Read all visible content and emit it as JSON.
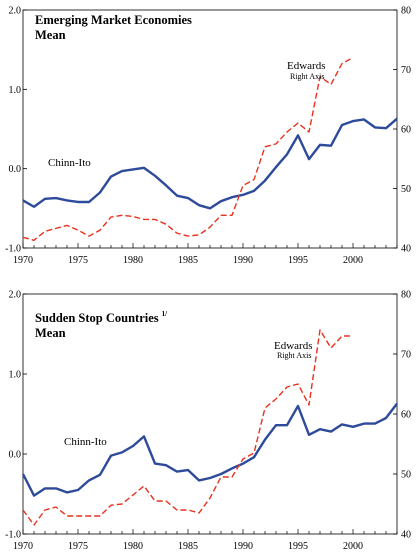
{
  "chart_data": [
    {
      "type": "line",
      "title": "Emerging Market Economies",
      "title_sup": "",
      "subtitle": "Mean",
      "x": [
        1970,
        1971,
        1972,
        1973,
        1974,
        1975,
        1976,
        1977,
        1978,
        1979,
        1980,
        1981,
        1982,
        1983,
        1984,
        1985,
        1986,
        1987,
        1988,
        1989,
        1990,
        1991,
        1992,
        1993,
        1994,
        1995,
        1996,
        1997,
        1998,
        1999,
        2000,
        2001,
        2002,
        2003,
        2004
      ],
      "xlim": [
        1970,
        2004
      ],
      "xticks": [
        "1970",
        "1975",
        "1980",
        "1985",
        "1990",
        "1995",
        "2000"
      ],
      "ylim_left": [
        -1.0,
        2.0
      ],
      "yticks_left": [
        "-1.0",
        "0.0",
        "1.0",
        "2.0"
      ],
      "ylim_right": [
        40,
        80
      ],
      "yticks_right": [
        "40",
        "50",
        "60",
        "70",
        "80"
      ],
      "grid": false,
      "series": [
        {
          "name": "Chinn-Ito",
          "axis": "left",
          "style": "solid",
          "color": "#2e4a9a",
          "values": [
            -0.4,
            -0.48,
            -0.38,
            -0.37,
            -0.4,
            -0.42,
            -0.42,
            -0.3,
            -0.1,
            -0.03,
            -0.01,
            0.01,
            -0.09,
            -0.21,
            -0.34,
            -0.37,
            -0.46,
            -0.5,
            -0.41,
            -0.36,
            -0.33,
            -0.28,
            -0.15,
            0.02,
            0.18,
            0.42,
            0.12,
            0.3,
            0.29,
            0.55,
            0.6,
            0.62,
            0.52,
            0.51,
            0.63
          ]
        },
        {
          "name": "Edwards",
          "sublabel": "Right Axis",
          "axis": "right",
          "style": "dashed",
          "color": "#e8321e",
          "x": [
            1970,
            1971,
            1972,
            1973,
            1974,
            1975,
            1976,
            1977,
            1978,
            1979,
            1980,
            1981,
            1982,
            1983,
            1984,
            1985,
            1986,
            1987,
            1988,
            1989,
            1990,
            1991,
            1992,
            1993,
            1994,
            1995,
            1996,
            1997,
            1998,
            1999,
            2000
          ],
          "values": [
            41.8,
            41.3,
            42.8,
            43.3,
            43.8,
            43.0,
            42.0,
            43.0,
            45.2,
            45.5,
            45.3,
            44.8,
            44.8,
            44.0,
            42.5,
            42.0,
            42.2,
            43.5,
            45.5,
            45.5,
            50.5,
            51.5,
            57.0,
            57.5,
            59.5,
            61.0,
            59.5,
            68.8,
            67.5,
            71.0,
            72.0
          ]
        }
      ],
      "annotations": [
        {
          "text": "Chinn-Ito"
        },
        {
          "text": "Edwards",
          "sub": "Right Axis"
        }
      ]
    },
    {
      "type": "line",
      "title": "Sudden Stop Countries",
      "title_sup": "1/",
      "subtitle": "Mean",
      "x": [
        1970,
        1971,
        1972,
        1973,
        1974,
        1975,
        1976,
        1977,
        1978,
        1979,
        1980,
        1981,
        1982,
        1983,
        1984,
        1985,
        1986,
        1987,
        1988,
        1989,
        1990,
        1991,
        1992,
        1993,
        1994,
        1995,
        1996,
        1997,
        1998,
        1999,
        2000,
        2001,
        2002,
        2003,
        2004
      ],
      "xlim": [
        1970,
        2004
      ],
      "xticks": [
        "1970",
        "1975",
        "1980",
        "1985",
        "1990",
        "1995",
        "2000"
      ],
      "ylim_left": [
        -1.0,
        2.0
      ],
      "yticks_left": [
        "-1.0",
        "0.0",
        "1.0",
        "2.0"
      ],
      "ylim_right": [
        40,
        80
      ],
      "yticks_right": [
        "40",
        "50",
        "60",
        "70",
        "80"
      ],
      "grid": false,
      "series": [
        {
          "name": "Chinn-Ito",
          "axis": "left",
          "style": "solid",
          "color": "#2e4a9a",
          "values": [
            -0.25,
            -0.52,
            -0.43,
            -0.43,
            -0.48,
            -0.45,
            -0.33,
            -0.26,
            -0.02,
            0.02,
            0.1,
            0.22,
            -0.12,
            -0.14,
            -0.22,
            -0.2,
            -0.33,
            -0.3,
            -0.25,
            -0.18,
            -0.12,
            -0.04,
            0.18,
            0.36,
            0.36,
            0.6,
            0.24,
            0.31,
            0.28,
            0.37,
            0.34,
            0.38,
            0.38,
            0.45,
            0.63
          ]
        },
        {
          "name": "Edwards",
          "sublabel": "Right Axis",
          "axis": "right",
          "style": "dashed",
          "color": "#e8321e",
          "x": [
            1970,
            1971,
            1972,
            1973,
            1974,
            1975,
            1976,
            1977,
            1978,
            1979,
            1980,
            1981,
            1982,
            1983,
            1984,
            1985,
            1986,
            1987,
            1988,
            1989,
            1990,
            1991,
            1992,
            1993,
            1994,
            1995,
            1996,
            1997,
            1998,
            1999,
            2000
          ],
          "values": [
            44.0,
            41.5,
            44.0,
            44.5,
            43.0,
            43.0,
            43.0,
            43.0,
            44.8,
            45.0,
            46.5,
            48.0,
            45.5,
            45.5,
            44.0,
            44.0,
            43.5,
            46.0,
            49.5,
            49.5,
            52.5,
            53.5,
            61.0,
            62.5,
            64.5,
            65.0,
            61.5,
            74.0,
            71.0,
            73.0,
            73.0
          ]
        }
      ],
      "annotations": [
        {
          "text": "Chinn-Ito"
        },
        {
          "text": "Edwards",
          "sub": "Right Axis"
        }
      ]
    }
  ]
}
